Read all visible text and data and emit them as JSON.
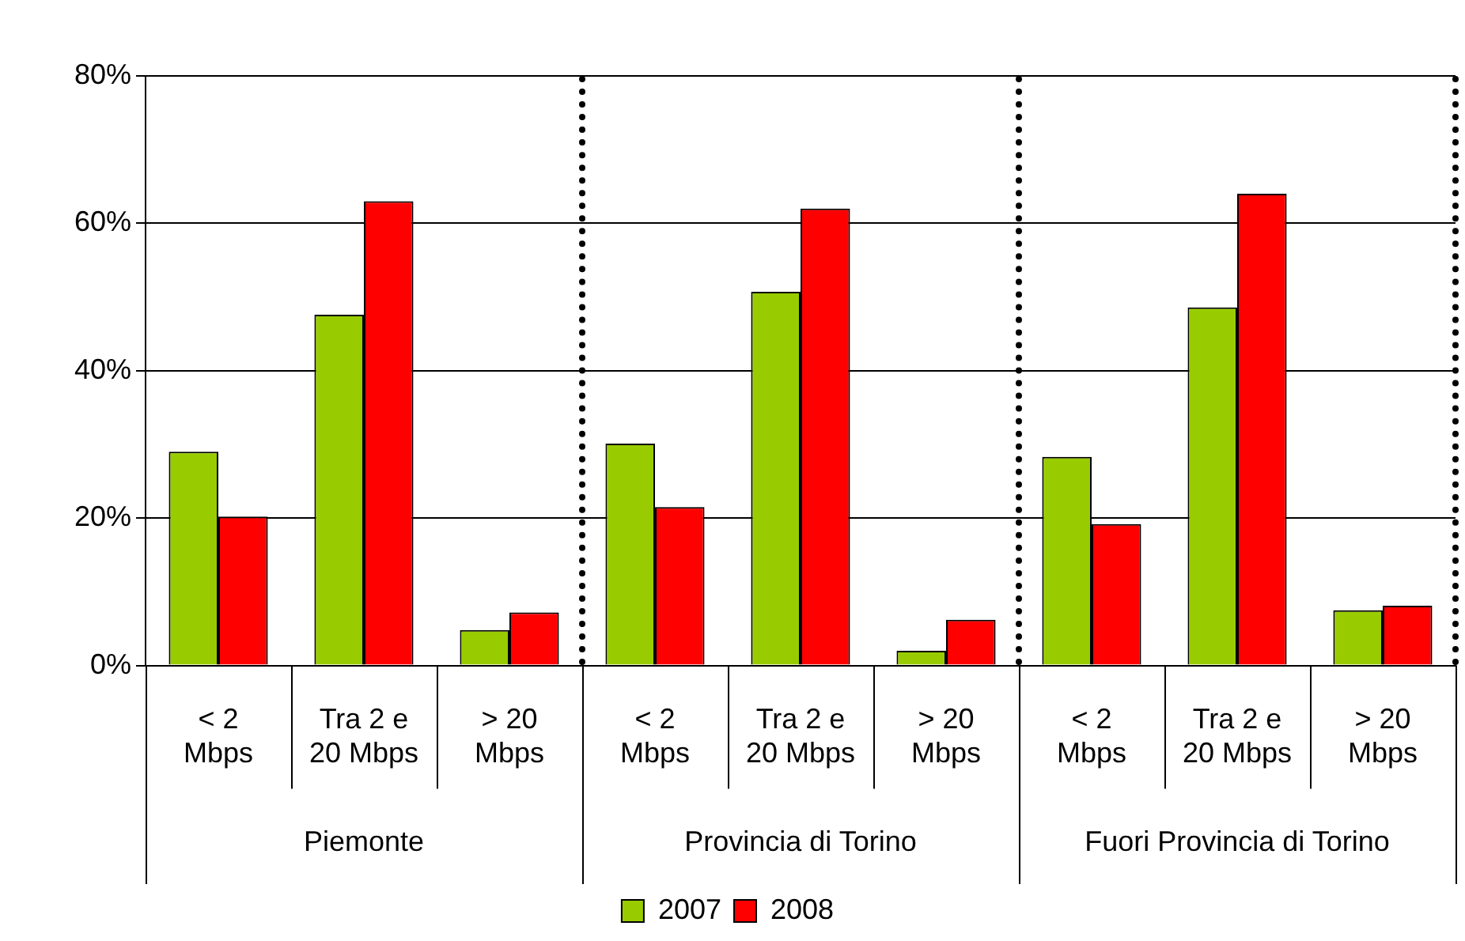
{
  "chart_data": {
    "type": "bar",
    "categories": [
      "< 2 Mbps",
      "Tra 2 e 20 Mbps",
      "> 20 Mbps",
      "< 2 Mbps",
      "Tra 2 e 20 Mbps",
      "> 20 Mbps",
      "< 2 Mbps",
      "Tra 2 e 20 Mbps",
      "> 20 Mbps"
    ],
    "annotations": [
      "Piemonte",
      "Provincia di Torino",
      "Fuori Provincia di Torino"
    ],
    "series": [
      {
        "name": "2007",
        "color": "#99cc00",
        "values": [
          29,
          47.6,
          4.8,
          30.1,
          50.7,
          2,
          28.3,
          48.6,
          7.5
        ]
      },
      {
        "name": "2008",
        "color": "#ff0000",
        "values": [
          20.2,
          63,
          7.2,
          21.5,
          62,
          6.2,
          19.2,
          64,
          8.1
        ]
      }
    ],
    "ylim": [
      0,
      80
    ],
    "yticks": [
      {
        "value": 0,
        "label": "0%"
      },
      {
        "value": 20,
        "label": "20%"
      },
      {
        "value": 40,
        "label": "40%"
      },
      {
        "value": 60,
        "label": "60%"
      },
      {
        "value": 80,
        "label": "80%"
      }
    ],
    "grid": "y",
    "legend": "bottom"
  }
}
